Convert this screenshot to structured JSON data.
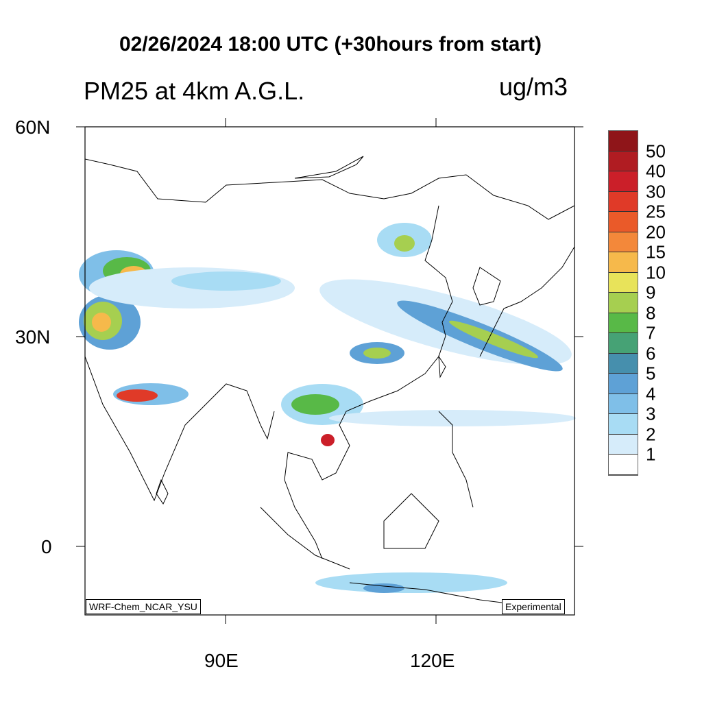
{
  "title": "02/26/2024 18:00 UTC (+30hours from start)",
  "subtitle": "PM25 at 4km A.G.L.",
  "units": "ug/m3",
  "axes": {
    "lat_labels": [
      "60N",
      "30N",
      "0"
    ],
    "lon_labels": [
      "90E",
      "120E"
    ],
    "lon_range": [
      70,
      140
    ],
    "lat_range": [
      -10,
      60
    ]
  },
  "model_label": "WRF-Chem_NCAR_YSU",
  "status_label": "Experimental",
  "colorbar": {
    "levels": [
      "50",
      "40",
      "30",
      "25",
      "20",
      "15",
      "10",
      "9",
      "8",
      "7",
      "6",
      "5",
      "4",
      "3",
      "2",
      "1"
    ],
    "colors": [
      "#8f1519",
      "#b01c22",
      "#cb1f29",
      "#e03a28",
      "#ea5a29",
      "#f3883a",
      "#f6b94b",
      "#e8e35a",
      "#a6cf50",
      "#58b947",
      "#46a275",
      "#468fad",
      "#5ea1d6",
      "#7fbfe8",
      "#a8dcf4",
      "#d6ecfa",
      "#ffffff"
    ]
  }
}
